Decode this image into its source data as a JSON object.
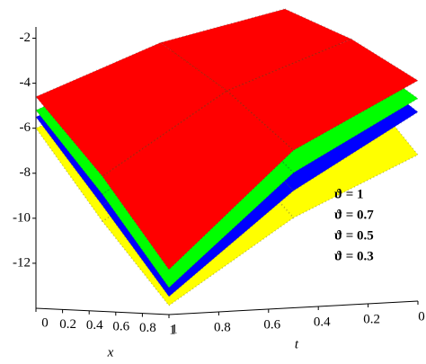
{
  "chart_data": {
    "type": "surface3d",
    "x_label": "x",
    "t_label": "t",
    "x": [
      0,
      0.5,
      1
    ],
    "t": [
      0,
      0.5,
      1
    ],
    "xlim": [
      0,
      1
    ],
    "tlim": [
      0,
      1
    ],
    "zlim": [
      -14,
      -1.5
    ],
    "xticks": [
      0,
      0.2,
      0.4,
      0.6,
      0.8,
      1
    ],
    "tticks": [
      1,
      0.8,
      0.6,
      0.4,
      0.2,
      0
    ],
    "zticks": [
      -2,
      -4,
      -6,
      -8,
      -10,
      -12
    ],
    "series": [
      {
        "name": "ϑ = 0.3",
        "color": "#ffff00",
        "values": [
          [
            -2,
            -4,
            -7.5
          ],
          [
            -3.8,
            -6.8,
            -10
          ],
          [
            -6,
            -10,
            -13.6
          ]
        ]
      },
      {
        "name": "ϑ = 0.5",
        "color": "#0000ff",
        "values": [
          [
            -1.7,
            -3.4,
            -5.6
          ],
          [
            -3.3,
            -5.8,
            -8.8
          ],
          [
            -5.5,
            -9.3,
            -13.2
          ]
        ]
      },
      {
        "name": "ϑ = 0.7",
        "color": "#00ff00",
        "values": [
          [
            -1.5,
            -3,
            -5
          ],
          [
            -3,
            -5.2,
            -8
          ],
          [
            -5.2,
            -8.8,
            -12.8
          ]
        ]
      },
      {
        "name": "ϑ = 1",
        "color": "#ff0000",
        "values": [
          [
            -1.3,
            -2.5,
            -4.2
          ],
          [
            -2.5,
            -4.5,
            -7
          ],
          [
            -4.6,
            -8,
            -12
          ]
        ]
      }
    ]
  }
}
